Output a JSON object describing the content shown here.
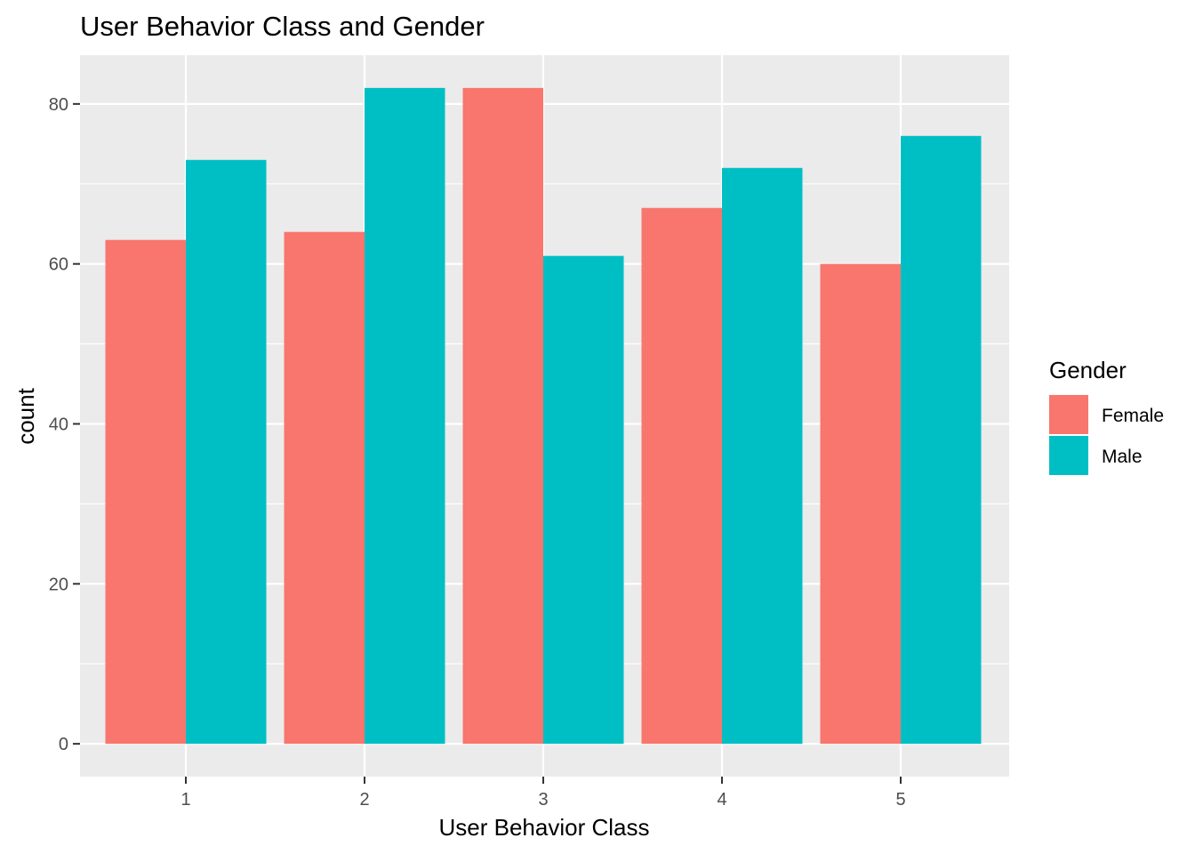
{
  "chart_data": {
    "type": "bar",
    "title": "User Behavior Class and Gender",
    "xlabel": "User Behavior Class",
    "ylabel": "count",
    "categories": [
      "1",
      "2",
      "3",
      "4",
      "5"
    ],
    "series": [
      {
        "name": "Female",
        "color": "#F8766D",
        "values": [
          63,
          64,
          82,
          67,
          60
        ]
      },
      {
        "name": "Male",
        "color": "#00BFC4",
        "values": [
          73,
          82,
          61,
          72,
          76
        ]
      }
    ],
    "ylim": [
      -4.1,
      86.1
    ],
    "yticks": [
      0,
      20,
      40,
      60,
      80
    ],
    "yminor": [
      10,
      30,
      50,
      70
    ],
    "grid": true,
    "panel_color": "#EBEBEB",
    "legend": {
      "title": "Gender",
      "position": "right"
    }
  }
}
